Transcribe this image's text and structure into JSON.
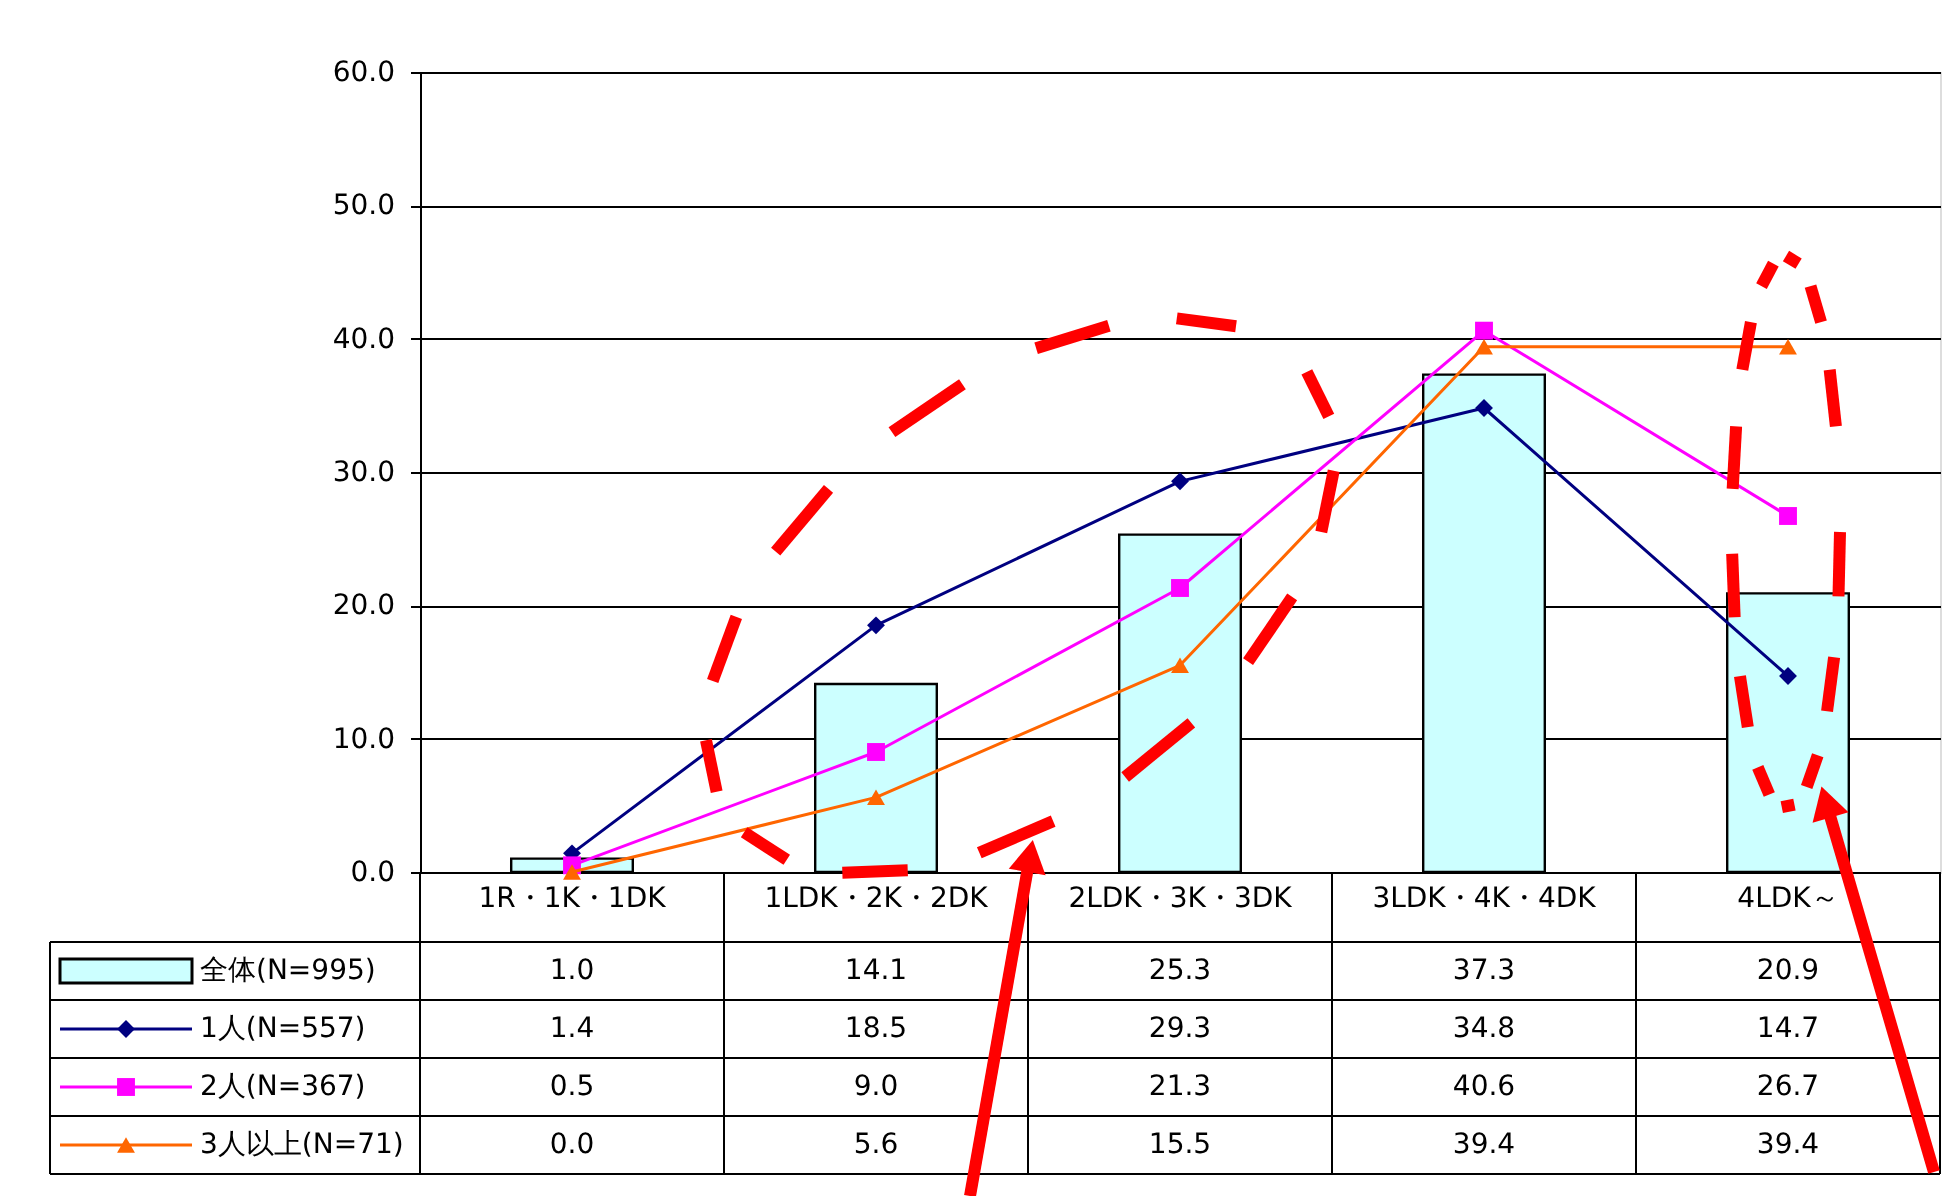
{
  "chart_data": {
    "type": "bar",
    "categories": [
      "1R・1K・1DK",
      "1LDK・2K・2DK",
      "2LDK・3K・3DK",
      "3LDK・4K・4DK",
      "4LDK～"
    ],
    "series": [
      {
        "name": "全体(N=995)",
        "color": "#ccffff",
        "values": [
          1.0,
          14.1,
          25.3,
          37.3,
          20.9
        ],
        "value_labels": [
          "1.0",
          "14.1",
          "25.3",
          "37.3",
          "20.9"
        ]
      },
      {
        "name": "1人(N=557)",
        "type": "line",
        "marker": "diamond",
        "color": "#000080",
        "values": [
          1.4,
          18.5,
          29.3,
          34.8,
          14.7
        ],
        "value_labels": [
          "1.4",
          "18.5",
          "29.3",
          "34.8",
          "14.7"
        ]
      },
      {
        "name": "2人(N=367)",
        "type": "line",
        "marker": "square",
        "color": "#ff00ff",
        "values": [
          0.5,
          9.0,
          21.3,
          40.6,
          26.7
        ],
        "value_labels": [
          "0.5",
          "9.0",
          "21.3",
          "40.6",
          "26.7"
        ]
      },
      {
        "name": "3人以上(N=71)",
        "type": "line",
        "marker": "triangle",
        "color": "#ff6600",
        "values": [
          0.0,
          5.6,
          15.5,
          39.4,
          39.4
        ],
        "value_labels": [
          "0.0",
          "5.6",
          "15.5",
          "39.4",
          "39.4"
        ]
      }
    ],
    "ylim": [
      0,
      60
    ],
    "yticks": [
      {
        "value": 0,
        "label": "0.0"
      },
      {
        "value": 10,
        "label": "10.0"
      },
      {
        "value": 20,
        "label": "20.0"
      },
      {
        "value": 30,
        "label": "30.0"
      },
      {
        "value": 40,
        "label": "40.0"
      },
      {
        "value": 50,
        "label": "50.0"
      },
      {
        "value": 60,
        "label": "60.0"
      }
    ],
    "grid": "y",
    "legend": "bottom"
  }
}
